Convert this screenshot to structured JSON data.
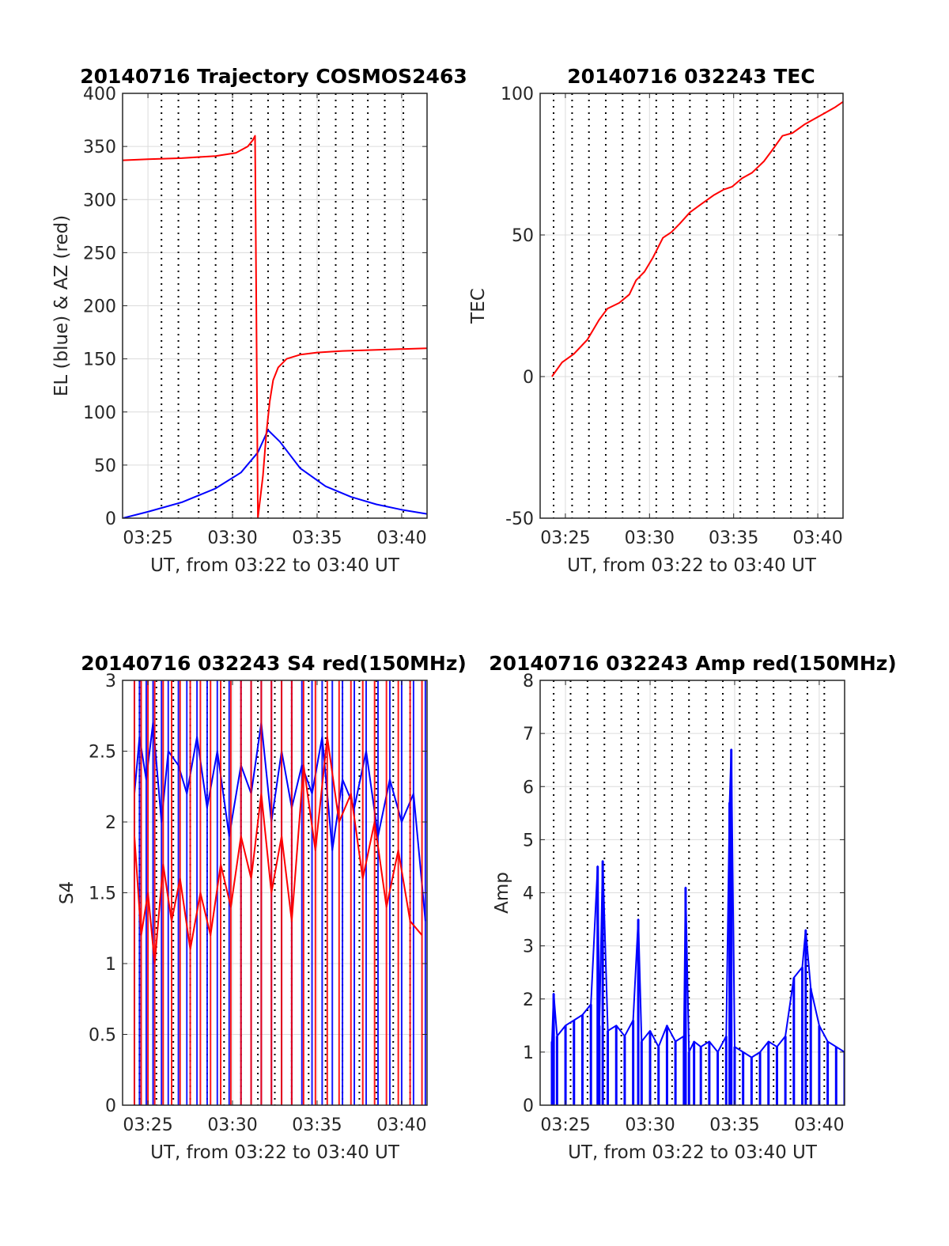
{
  "chart_data": [
    {
      "type": "line",
      "title": "20140716 Trajectory COSMOS2463",
      "xlabel": "UT, from 03:22 to 03:40 UT",
      "ylabel": "EL (blue) & AZ (red)",
      "xlim": [
        3.5,
        21.5
      ],
      "ylim": [
        0,
        400
      ],
      "xticks": [
        5,
        10,
        15,
        20
      ],
      "xtick_labels": [
        "03:25",
        "03:30",
        "03:35",
        "03:40"
      ],
      "yticks": [
        0,
        50,
        100,
        150,
        200,
        250,
        300,
        350,
        400
      ],
      "ytick_labels": [
        "0",
        "50",
        "100",
        "150",
        "200",
        "250",
        "300",
        "350",
        "400"
      ],
      "vgrid_dotted": [
        5.8,
        6.8,
        8,
        9,
        10,
        11.1,
        12.1,
        13,
        14,
        15.1,
        16.1,
        17.1,
        18,
        19,
        20.1
      ],
      "grid": true,
      "series": [
        {
          "name": "EL",
          "color": "#0000ff",
          "x": [
            3.5,
            5,
            7,
            9,
            10.5,
            11.5,
            12.1,
            12.8,
            14,
            15.5,
            17,
            18.5,
            20,
            21.5
          ],
          "y": [
            0,
            6,
            15,
            28,
            43,
            62,
            83,
            72,
            47,
            30,
            20,
            13,
            8,
            4
          ]
        },
        {
          "name": "AZ",
          "color": "#ff0000",
          "x": [
            3.5,
            5,
            7,
            9,
            10.2,
            10.9,
            11.2,
            11.33,
            11.5,
            11.8,
            12.0,
            12.2,
            12.4,
            12.7,
            13.2,
            14,
            15,
            16.5,
            18.5,
            21.5
          ],
          "y": [
            337,
            338,
            339,
            341,
            344,
            350,
            356,
            360,
            0,
            40,
            80,
            110,
            130,
            142,
            150,
            154,
            156,
            157.5,
            158.5,
            160
          ]
        }
      ]
    },
    {
      "type": "line",
      "title": "20140716 032243 TEC",
      "xlabel": "UT, from 03:22 to 03:40 UT",
      "ylabel": "TEC",
      "xlim": [
        3.5,
        21.5
      ],
      "ylim": [
        -50,
        100
      ],
      "xticks": [
        5,
        10,
        15,
        20
      ],
      "xtick_labels": [
        "03:25",
        "03:30",
        "03:35",
        "03:40"
      ],
      "yticks": [
        -50,
        0,
        50,
        100
      ],
      "ytick_labels": [
        "-50",
        "0",
        "50",
        "100"
      ],
      "vgrid_dotted": [
        4.3,
        5.4,
        6.4,
        7.4,
        8.4,
        9.4,
        10.4,
        11.4,
        12.4,
        13.4,
        14.4,
        15.4,
        16.4,
        17.4,
        18.4,
        19.4,
        20.4
      ],
      "grid": true,
      "series": [
        {
          "name": "TEC",
          "color": "#ff0000",
          "x": [
            4.2,
            4.8,
            5.5,
            6.3,
            7.0,
            7.5,
            8.2,
            8.8,
            9.2,
            9.7,
            10.2,
            10.8,
            11.3,
            11.8,
            12.4,
            13.1,
            13.8,
            14.4,
            14.9,
            15.5,
            16.1,
            16.8,
            17.3,
            17.9,
            18.5,
            19.2,
            19.8,
            20.4,
            21.0,
            21.5
          ],
          "y": [
            0,
            5,
            8,
            13,
            20,
            24,
            26,
            29,
            34,
            37,
            42,
            49,
            51,
            54,
            58,
            61,
            64,
            66,
            67,
            70,
            72,
            76,
            80,
            85,
            86,
            89,
            91,
            93,
            95,
            97
          ]
        }
      ]
    },
    {
      "type": "line",
      "title": "20140716 032243 S4 red(150MHz)",
      "xlabel": "UT, from 03:22 to 03:40 UT",
      "ylabel": "S4",
      "xlim": [
        3.5,
        21.5
      ],
      "ylim": [
        0,
        3
      ],
      "xticks": [
        5,
        10,
        15,
        20
      ],
      "xtick_labels": [
        "03:25",
        "03:30",
        "03:35",
        "03:40"
      ],
      "yticks": [
        0,
        0.5,
        1,
        1.5,
        2,
        2.5,
        3
      ],
      "ytick_labels": [
        "0",
        "0.5",
        "1",
        "1.5",
        "2",
        "2.5",
        "3"
      ],
      "vgrid_dotted": [
        4.5,
        5.5,
        6.5,
        7.5,
        8.5,
        9.5,
        10.5,
        11.5,
        12.5,
        13.5,
        14.5,
        15.5,
        16.5,
        17.5,
        18.5,
        19.5,
        20.5
      ],
      "grid": true,
      "series": [
        {
          "name": "S4 blue",
          "color": "#0000ff",
          "x": [
            4.2,
            4.5,
            4.9,
            5.3,
            5.8,
            6.2,
            6.8,
            7.3,
            7.9,
            8.5,
            9.1,
            9.8,
            10.5,
            11.1,
            11.7,
            12.3,
            12.9,
            13.5,
            14.1,
            14.7,
            15.3,
            15.9,
            16.5,
            17.2,
            17.9,
            18.6,
            19.3,
            20.0,
            20.7,
            21.4
          ],
          "y": [
            2.2,
            2.6,
            2.3,
            2.7,
            2.0,
            2.5,
            2.4,
            2.2,
            2.6,
            2.1,
            2.5,
            1.9,
            2.4,
            2.2,
            2.7,
            2.0,
            2.5,
            2.1,
            2.4,
            2.2,
            2.6,
            1.8,
            2.3,
            2.1,
            2.5,
            1.9,
            2.3,
            2.0,
            2.2,
            1.3
          ]
        },
        {
          "name": "S4 red",
          "color": "#ff0000",
          "x": [
            4.2,
            4.6,
            5.0,
            5.4,
            5.9,
            6.4,
            6.9,
            7.5,
            8.1,
            8.7,
            9.3,
            9.9,
            10.5,
            11.1,
            11.7,
            12.3,
            12.9,
            13.5,
            14.2,
            14.9,
            15.6,
            16.3,
            17.0,
            17.7,
            18.4,
            19.1,
            19.8,
            20.5,
            21.2
          ],
          "y": [
            1.9,
            1.2,
            1.5,
            1.0,
            1.7,
            1.3,
            1.6,
            1.1,
            1.5,
            1.2,
            1.7,
            1.4,
            1.9,
            1.6,
            2.2,
            1.5,
            1.9,
            1.3,
            2.4,
            1.8,
            2.6,
            2.0,
            2.2,
            1.6,
            2.0,
            1.4,
            1.8,
            1.3,
            1.2
          ]
        }
      ]
    },
    {
      "type": "line",
      "title": "20140716 032243 Amp red(150MHz)",
      "xlabel": "UT, from 03:22 to 03:40 UT",
      "ylabel": "Amp",
      "xlim": [
        3.5,
        21.5
      ],
      "ylim": [
        0,
        8
      ],
      "xticks": [
        5,
        10,
        15,
        20
      ],
      "xtick_labels": [
        "03:25",
        "03:30",
        "03:35",
        "03:40"
      ],
      "yticks": [
        0,
        1,
        2,
        3,
        4,
        5,
        6,
        7,
        8
      ],
      "ytick_labels": [
        "0",
        "1",
        "2",
        "3",
        "4",
        "5",
        "6",
        "7",
        "8"
      ],
      "vgrid_dotted": [
        4.3,
        5.3,
        6.3,
        7.3,
        8.3,
        9.3,
        10.3,
        11.3,
        12.3,
        13.3,
        14.3,
        15.3,
        16.3,
        17.3,
        18.3,
        19.3,
        20.3
      ],
      "grid": true,
      "series": [
        {
          "name": "Amp",
          "color": "#0000ff",
          "x": [
            4.2,
            4.3,
            4.5,
            5.0,
            5.5,
            6.0,
            6.5,
            6.9,
            7.0,
            7.2,
            7.5,
            8.0,
            8.5,
            9.0,
            9.3,
            9.5,
            10.0,
            10.5,
            11.0,
            11.5,
            12.0,
            12.1,
            12.3,
            12.6,
            13.0,
            13.5,
            14.0,
            14.5,
            14.7,
            14.8,
            15.0,
            15.5,
            16.0,
            16.5,
            17.0,
            17.5,
            18.0,
            18.5,
            19.0,
            19.2,
            19.5,
            20.0,
            20.5,
            21.0,
            21.5
          ],
          "y": [
            1.2,
            2.1,
            1.3,
            1.5,
            1.6,
            1.7,
            1.9,
            4.5,
            1.5,
            4.6,
            1.4,
            1.5,
            1.3,
            1.6,
            3.5,
            1.2,
            1.4,
            1.1,
            1.5,
            1.2,
            1.3,
            4.1,
            1.0,
            1.2,
            1.1,
            1.2,
            1.0,
            1.3,
            5.7,
            6.7,
            1.1,
            1.0,
            0.9,
            1.0,
            1.2,
            1.1,
            1.3,
            2.4,
            2.6,
            3.3,
            2.2,
            1.5,
            1.2,
            1.1,
            1.0
          ]
        }
      ]
    }
  ]
}
